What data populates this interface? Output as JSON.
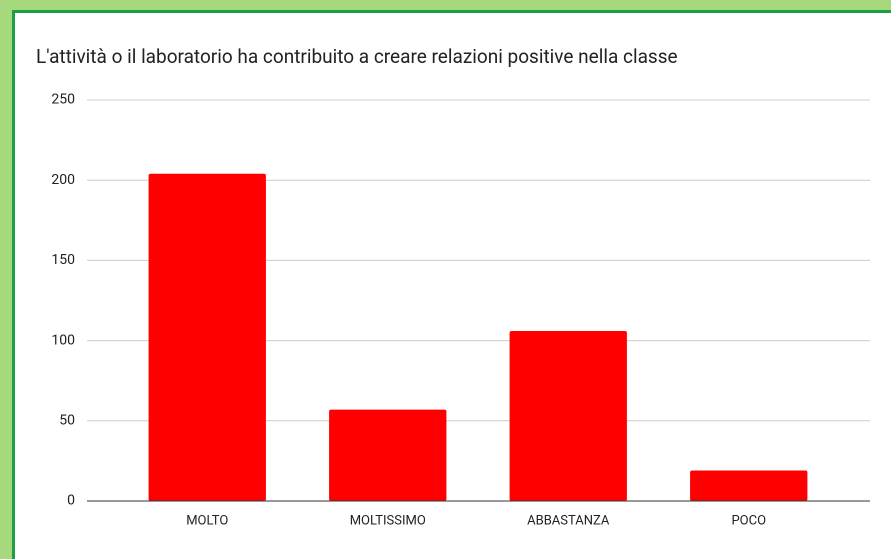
{
  "chart_data": {
    "type": "bar",
    "title": "L'attività o il laboratorio ha contribuito a creare relazioni positive nella classe",
    "categories": [
      "MOLTO",
      "MOLTISSIMO",
      "ABBASTANZA",
      "POCO"
    ],
    "values": [
      204,
      57,
      106,
      19
    ],
    "color": "#ff0000",
    "ylim": [
      0,
      250
    ],
    "yticks": [
      0,
      50,
      100,
      150,
      200,
      250
    ],
    "grid": true
  }
}
